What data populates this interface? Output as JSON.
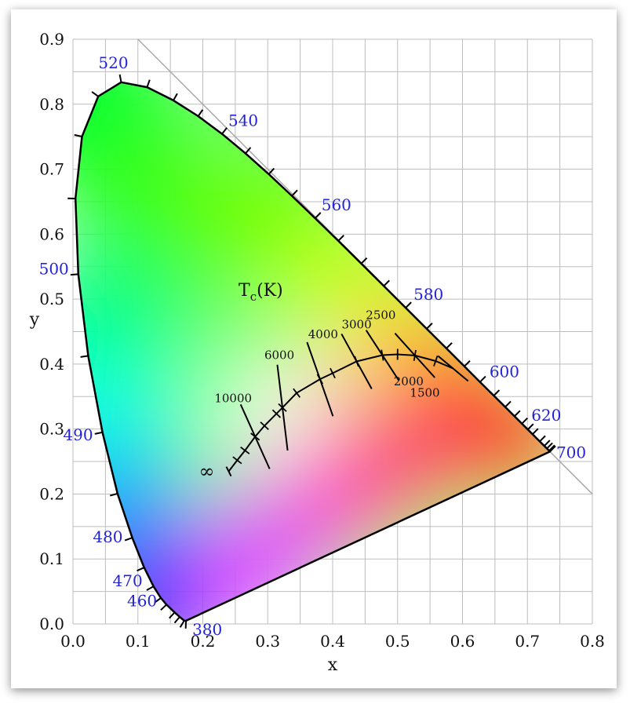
{
  "chart_data": {
    "type": "line",
    "xlabel": "x",
    "ylabel": "y",
    "xlim": [
      0.0,
      0.8
    ],
    "ylim": [
      0.0,
      0.9
    ],
    "grid": true,
    "x_ticks": [
      "0.0",
      "0.1",
      "0.2",
      "0.3",
      "0.4",
      "0.5",
      "0.6",
      "0.7",
      "0.8"
    ],
    "y_ticks": [
      "0.0",
      "0.1",
      "0.2",
      "0.3",
      "0.4",
      "0.5",
      "0.6",
      "0.7",
      "0.8",
      "0.9"
    ],
    "spectral_locus": [
      {
        "nm": 380,
        "x": 0.1741,
        "y": 0.005
      },
      {
        "nm": 420,
        "x": 0.1714,
        "y": 0.0051
      },
      {
        "nm": 440,
        "x": 0.1644,
        "y": 0.0109
      },
      {
        "nm": 450,
        "x": 0.1566,
        "y": 0.0177
      },
      {
        "nm": 460,
        "x": 0.144,
        "y": 0.0297
      },
      {
        "nm": 465,
        "x": 0.1355,
        "y": 0.0399
      },
      {
        "nm": 470,
        "x": 0.1241,
        "y": 0.0578
      },
      {
        "nm": 475,
        "x": 0.1096,
        "y": 0.0868
      },
      {
        "nm": 480,
        "x": 0.0913,
        "y": 0.1327
      },
      {
        "nm": 485,
        "x": 0.0687,
        "y": 0.2007
      },
      {
        "nm": 490,
        "x": 0.0454,
        "y": 0.295
      },
      {
        "nm": 495,
        "x": 0.0235,
        "y": 0.4127
      },
      {
        "nm": 500,
        "x": 0.0082,
        "y": 0.5384
      },
      {
        "nm": 505,
        "x": 0.0039,
        "y": 0.6548
      },
      {
        "nm": 510,
        "x": 0.0139,
        "y": 0.7502
      },
      {
        "nm": 515,
        "x": 0.0389,
        "y": 0.812
      },
      {
        "nm": 520,
        "x": 0.0743,
        "y": 0.8338
      },
      {
        "nm": 525,
        "x": 0.1142,
        "y": 0.8262
      },
      {
        "nm": 530,
        "x": 0.1547,
        "y": 0.8059
      },
      {
        "nm": 535,
        "x": 0.1929,
        "y": 0.7816
      },
      {
        "nm": 540,
        "x": 0.2296,
        "y": 0.7543
      },
      {
        "nm": 545,
        "x": 0.2658,
        "y": 0.7243
      },
      {
        "nm": 550,
        "x": 0.3016,
        "y": 0.6923
      },
      {
        "nm": 555,
        "x": 0.3373,
        "y": 0.6589
      },
      {
        "nm": 560,
        "x": 0.3731,
        "y": 0.6245
      },
      {
        "nm": 565,
        "x": 0.4087,
        "y": 0.5896
      },
      {
        "nm": 570,
        "x": 0.4441,
        "y": 0.5547
      },
      {
        "nm": 575,
        "x": 0.4788,
        "y": 0.5202
      },
      {
        "nm": 580,
        "x": 0.5125,
        "y": 0.4866
      },
      {
        "nm": 585,
        "x": 0.5448,
        "y": 0.4544
      },
      {
        "nm": 590,
        "x": 0.5752,
        "y": 0.4242
      },
      {
        "nm": 595,
        "x": 0.6029,
        "y": 0.3965
      },
      {
        "nm": 600,
        "x": 0.627,
        "y": 0.3725
      },
      {
        "nm": 605,
        "x": 0.6482,
        "y": 0.3514
      },
      {
        "nm": 610,
        "x": 0.6658,
        "y": 0.334
      },
      {
        "nm": 615,
        "x": 0.6801,
        "y": 0.3197
      },
      {
        "nm": 620,
        "x": 0.6915,
        "y": 0.3083
      },
      {
        "nm": 625,
        "x": 0.7006,
        "y": 0.2993
      },
      {
        "nm": 630,
        "x": 0.7079,
        "y": 0.292
      },
      {
        "nm": 640,
        "x": 0.719,
        "y": 0.2809
      },
      {
        "nm": 650,
        "x": 0.726,
        "y": 0.274
      },
      {
        "nm": 660,
        "x": 0.73,
        "y": 0.27
      },
      {
        "nm": 680,
        "x": 0.7334,
        "y": 0.2666
      },
      {
        "nm": 700,
        "x": 0.7347,
        "y": 0.2653
      }
    ],
    "wavelength_labels": [
      {
        "text": "380",
        "x": 0.1741,
        "y": 0.005
      },
      {
        "text": "460",
        "x": 0.144,
        "y": 0.0297
      },
      {
        "text": "470",
        "x": 0.1241,
        "y": 0.0578
      },
      {
        "text": "480",
        "x": 0.0913,
        "y": 0.1327
      },
      {
        "text": "490",
        "x": 0.0454,
        "y": 0.295
      },
      {
        "text": "500",
        "x": 0.0082,
        "y": 0.5384
      },
      {
        "text": "520",
        "x": 0.0743,
        "y": 0.8338
      },
      {
        "text": "540",
        "x": 0.2296,
        "y": 0.7543
      },
      {
        "text": "560",
        "x": 0.3731,
        "y": 0.6245
      },
      {
        "text": "580",
        "x": 0.5125,
        "y": 0.4866
      },
      {
        "text": "600",
        "x": 0.627,
        "y": 0.3725
      },
      {
        "text": "620",
        "x": 0.6915,
        "y": 0.3083
      },
      {
        "text": "700",
        "x": 0.7347,
        "y": 0.2653
      }
    ],
    "planckian_locus": [
      [
        0.2399,
        0.2348
      ],
      [
        0.253,
        0.252
      ],
      [
        0.265,
        0.267
      ],
      [
        0.2806,
        0.2883
      ],
      [
        0.295,
        0.305
      ],
      [
        0.3135,
        0.3236
      ],
      [
        0.3227,
        0.333
      ],
      [
        0.3445,
        0.3555
      ],
      [
        0.3805,
        0.3768
      ],
      [
        0.4,
        0.386
      ],
      [
        0.4369,
        0.4041
      ],
      [
        0.4766,
        0.4137
      ],
      [
        0.5,
        0.415
      ],
      [
        0.5267,
        0.4133
      ],
      [
        0.5586,
        0.4047
      ],
      [
        0.5855,
        0.3932
      ]
    ],
    "isotherms": [
      {
        "label": "∞",
        "x": 0.2399,
        "y": 0.2348
      },
      {
        "label": "10000",
        "x": 0.2806,
        "y": 0.2883
      },
      {
        "label": "6000",
        "x": 0.3227,
        "y": 0.333
      },
      {
        "label": "4000",
        "x": 0.3805,
        "y": 0.3768
      },
      {
        "label": "3000",
        "x": 0.4369,
        "y": 0.4041
      },
      {
        "label": "2500",
        "x": 0.4766,
        "y": 0.4137
      },
      {
        "label": "2000",
        "x": 0.5267,
        "y": 0.4133
      },
      {
        "label": "1500",
        "x": 0.5855,
        "y": 0.3932
      }
    ],
    "tc_title": {
      "main": "T",
      "sub": "c",
      "rest": "(K)"
    },
    "colors": {
      "locus": "#000000",
      "grid": "#bdbdbd",
      "wavelength_label": "#2323d8",
      "diagonal": "#aaaaaa"
    }
  }
}
